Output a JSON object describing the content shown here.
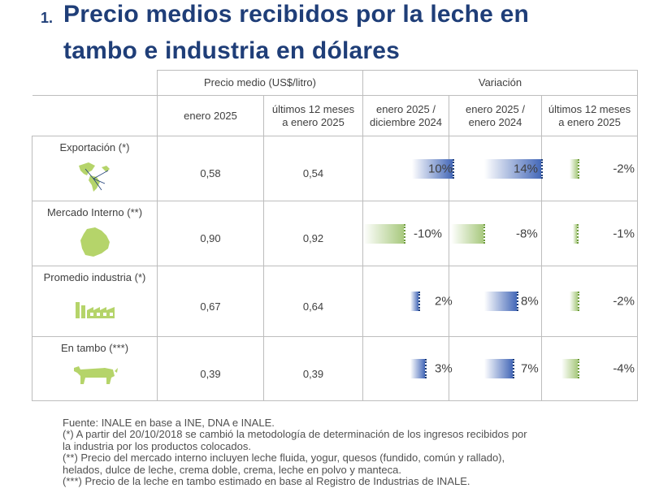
{
  "title": {
    "number": "1.",
    "line1": "Precio medios recibidos por la leche en",
    "line2": "tambo e industria en dólares"
  },
  "table": {
    "group_headers": {
      "price": "Precio medio (US$/litro)",
      "variation": "Variación"
    },
    "sub_headers": {
      "price_jan": "enero 2025",
      "price_12m_l1": "últimos 12 meses",
      "price_12m_l2": "a enero 2025",
      "var_mom_l1": "enero 2025 /",
      "var_mom_l2": "diciembre 2024",
      "var_yoy_l1": "enero 2025 /",
      "var_yoy_l2": "enero 2024",
      "var_12m_l1": "últimos 12 meses",
      "var_12m_l2": "a enero 2025"
    },
    "rows": [
      {
        "label": "Exportación (*)",
        "icon": "world-map-americas-icon",
        "price_jan": "0,58",
        "price_12m": "0,54",
        "var_mom": "10%",
        "var_mom_value": 10,
        "var_yoy": "14%",
        "var_yoy_value": 14,
        "var_12m": "-2%",
        "var_12m_value": -2
      },
      {
        "label": "Mercado Interno (**)",
        "icon": "uruguay-map-icon",
        "price_jan": "0,90",
        "price_12m": "0,92",
        "var_mom": "-10%",
        "var_mom_value": -10,
        "var_yoy": "-8%",
        "var_yoy_value": -8,
        "var_12m": "-1%",
        "var_12m_value": -1
      },
      {
        "label": "Promedio industria (*)",
        "icon": "factory-icon",
        "price_jan": "0,67",
        "price_12m": "0,64",
        "var_mom": "2%",
        "var_mom_value": 2,
        "var_yoy": "8%",
        "var_yoy_value": 8,
        "var_12m": "-2%",
        "var_12m_value": -2
      },
      {
        "label": "En tambo (***)",
        "icon": "cow-icon",
        "price_jan": "0,39",
        "price_12m": "0,39",
        "var_mom": "3%",
        "var_mom_value": 3,
        "var_yoy": "7%",
        "var_yoy_value": 7,
        "var_12m": "-4%",
        "var_12m_value": -4
      }
    ]
  },
  "footer": {
    "l1": "Fuente: INALE en base a INE, DNA e INALE.",
    "l2": "(*) A partir del 20/10/2018 se cambió la metodología de determinación de los ingresos recibidos por",
    "l3": "la industria por los productos colocados.",
    "l4": "(**) Precio del mercado interno incluyen leche fluida, yogur, quesos (fundido, común y rallado),",
    "l5": "helados, dulce de leche, crema doble, crema, leche en polvo y manteca.",
    "l6": "(***) Precio de la leche en tambo estimado en base al Registro de Industrias de INALE."
  },
  "colors": {
    "title": "#1f3e78",
    "value": "#1a5fa8",
    "positive_bar": "#4468b8",
    "negative_bar": "#a8c97e",
    "icon": "#b5d46a"
  }
}
